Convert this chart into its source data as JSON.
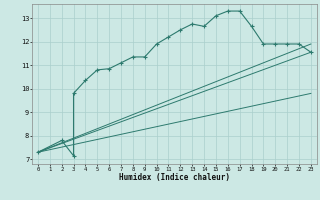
{
  "xlabel": "Humidex (Indice chaleur)",
  "ylabel": "",
  "bg_color": "#cce8e4",
  "line_color": "#2d7a6e",
  "grid_color": "#aacfcc",
  "xlim": [
    -0.5,
    23.5
  ],
  "ylim": [
    6.8,
    13.6
  ],
  "xticks": [
    0,
    1,
    2,
    3,
    4,
    5,
    6,
    7,
    8,
    9,
    10,
    11,
    12,
    13,
    14,
    15,
    16,
    17,
    18,
    19,
    20,
    21,
    22,
    23
  ],
  "yticks": [
    7,
    8,
    9,
    10,
    11,
    12,
    13
  ],
  "main_x": [
    0,
    2,
    3,
    3,
    4,
    5,
    6,
    7,
    8,
    9,
    10,
    11,
    12,
    13,
    14,
    15,
    16,
    17,
    18,
    19,
    20,
    21,
    22,
    23
  ],
  "main_y": [
    7.3,
    7.8,
    7.15,
    9.8,
    10.35,
    10.8,
    10.85,
    11.1,
    11.35,
    11.35,
    11.9,
    12.2,
    12.5,
    12.75,
    12.65,
    13.1,
    13.3,
    13.3,
    12.65,
    11.9,
    11.9,
    11.9,
    11.9,
    11.55
  ],
  "line1_x": [
    0,
    23
  ],
  "line1_y": [
    7.3,
    11.55
  ],
  "line2_x": [
    0,
    23
  ],
  "line2_y": [
    7.3,
    11.9
  ],
  "line3_x": [
    0,
    23
  ],
  "line3_y": [
    7.3,
    9.8
  ]
}
